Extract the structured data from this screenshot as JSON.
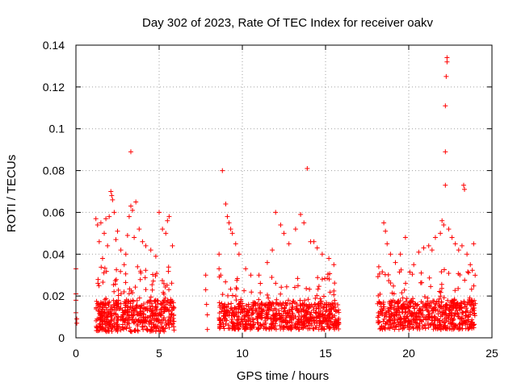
{
  "chart_data": {
    "type": "scatter",
    "title": "Day 302 of 2023, Rate Of TEC Index for receiver oakv",
    "xlabel": "GPS time / hours",
    "ylabel": "ROTI / TECUs",
    "xlim": [
      0,
      25
    ],
    "ylim": [
      0,
      0.14
    ],
    "grid": true,
    "marker": "+",
    "x_ticks": [
      0,
      5,
      10,
      15,
      20,
      25
    ],
    "x_tick_labels": [
      "0",
      "5",
      "10",
      "15",
      "20",
      "25"
    ],
    "y_ticks": [
      0,
      0.02,
      0.04,
      0.06,
      0.08,
      0.1,
      0.12,
      0.14
    ],
    "y_tick_labels": [
      "0",
      "0.02",
      "0.04",
      "0.06",
      "0.08",
      "0.1",
      "0.12",
      "0.14"
    ],
    "series": [
      {
        "name": "ROTI",
        "color": "#ff0000",
        "points": [
          [
            0.0,
            0.033
          ],
          [
            0.0,
            0.021
          ],
          [
            0.0,
            0.018
          ],
          [
            0.0,
            0.012
          ],
          [
            0.05,
            0.009
          ],
          [
            0.05,
            0.007
          ],
          [
            1.2,
            0.057
          ],
          [
            1.3,
            0.054
          ],
          [
            1.4,
            0.046
          ],
          [
            1.5,
            0.055
          ],
          [
            1.6,
            0.038
          ],
          [
            1.7,
            0.05
          ],
          [
            1.8,
            0.057
          ],
          [
            1.9,
            0.044
          ],
          [
            2.0,
            0.058
          ],
          [
            2.1,
            0.07
          ],
          [
            2.15,
            0.068
          ],
          [
            2.2,
            0.066
          ],
          [
            2.3,
            0.06
          ],
          [
            2.4,
            0.047
          ],
          [
            2.5,
            0.051
          ],
          [
            2.7,
            0.042
          ],
          [
            2.9,
            0.035
          ],
          [
            3.0,
            0.04
          ],
          [
            3.1,
            0.049
          ],
          [
            3.2,
            0.058
          ],
          [
            3.3,
            0.063
          ],
          [
            3.3,
            0.089
          ],
          [
            3.35,
            0.003
          ],
          [
            3.4,
            0.061
          ],
          [
            3.5,
            0.048
          ],
          [
            3.6,
            0.065
          ],
          [
            3.8,
            0.052
          ],
          [
            4.0,
            0.046
          ],
          [
            4.2,
            0.044
          ],
          [
            4.5,
            0.042
          ],
          [
            4.8,
            0.039
          ],
          [
            5.0,
            0.06
          ],
          [
            5.2,
            0.052
          ],
          [
            5.4,
            0.05
          ],
          [
            5.5,
            0.056
          ],
          [
            5.6,
            0.058
          ],
          [
            5.8,
            0.044
          ],
          [
            7.8,
            0.03
          ],
          [
            7.8,
            0.023
          ],
          [
            7.85,
            0.016
          ],
          [
            7.9,
            0.011
          ],
          [
            7.9,
            0.004
          ],
          [
            8.6,
            0.04
          ],
          [
            8.6,
            0.033
          ],
          [
            8.7,
            0.03
          ],
          [
            8.8,
            0.08
          ],
          [
            9.0,
            0.064
          ],
          [
            9.1,
            0.058
          ],
          [
            9.2,
            0.055
          ],
          [
            9.3,
            0.052
          ],
          [
            9.4,
            0.05
          ],
          [
            9.6,
            0.045
          ],
          [
            9.8,
            0.04
          ],
          [
            10.2,
            0.033
          ],
          [
            11.0,
            0.03
          ],
          [
            11.5,
            0.036
          ],
          [
            11.8,
            0.042
          ],
          [
            12.0,
            0.06
          ],
          [
            12.3,
            0.054
          ],
          [
            12.5,
            0.05
          ],
          [
            12.8,
            0.045
          ],
          [
            13.2,
            0.052
          ],
          [
            13.5,
            0.059
          ],
          [
            13.7,
            0.055
          ],
          [
            13.9,
            0.081
          ],
          [
            14.1,
            0.046
          ],
          [
            14.3,
            0.046
          ],
          [
            14.5,
            0.043
          ],
          [
            14.8,
            0.04
          ],
          [
            15.2,
            0.038
          ],
          [
            15.5,
            0.035
          ],
          [
            18.2,
            0.034
          ],
          [
            18.5,
            0.055
          ],
          [
            18.6,
            0.051
          ],
          [
            18.7,
            0.045
          ],
          [
            18.9,
            0.04
          ],
          [
            19.2,
            0.036
          ],
          [
            19.5,
            0.04
          ],
          [
            19.8,
            0.048
          ],
          [
            20.3,
            0.035
          ],
          [
            20.6,
            0.041
          ],
          [
            20.9,
            0.043
          ],
          [
            21.2,
            0.044
          ],
          [
            21.4,
            0.042
          ],
          [
            21.6,
            0.048
          ],
          [
            21.9,
            0.05
          ],
          [
            22.0,
            0.056
          ],
          [
            22.1,
            0.054
          ],
          [
            22.2,
            0.073
          ],
          [
            22.2,
            0.089
          ],
          [
            22.2,
            0.111
          ],
          [
            22.25,
            0.125
          ],
          [
            22.3,
            0.132
          ],
          [
            22.3,
            0.134
          ],
          [
            22.4,
            0.052
          ],
          [
            22.6,
            0.048
          ],
          [
            22.8,
            0.045
          ],
          [
            23.0,
            0.042
          ],
          [
            23.2,
            0.044
          ],
          [
            23.3,
            0.073
          ],
          [
            23.35,
            0.071
          ],
          [
            23.5,
            0.04
          ],
          [
            23.7,
            0.035
          ],
          [
            23.9,
            0.045
          ]
        ],
        "dense_segments": [
          {
            "x_range": [
              1.2,
              5.9
            ],
            "y_base": [
              0.003,
              0.012
            ],
            "y_peak": 0.034,
            "count": 520
          },
          {
            "x_range": [
              8.6,
              15.8
            ],
            "y_base": [
              0.004,
              0.011
            ],
            "y_peak": 0.031,
            "count": 720
          },
          {
            "x_range": [
              18.1,
              24.0
            ],
            "y_base": [
              0.004,
              0.012
            ],
            "y_peak": 0.033,
            "count": 620
          }
        ]
      }
    ]
  }
}
